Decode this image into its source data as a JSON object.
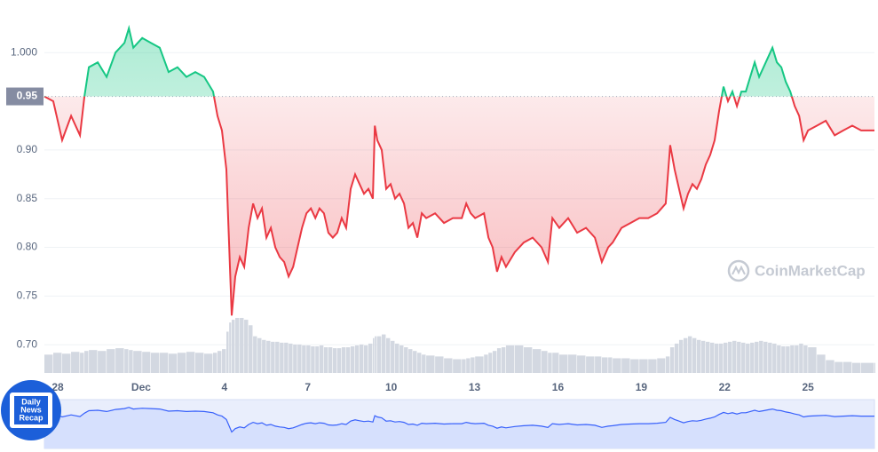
{
  "chart_data": {
    "type": "line",
    "x": [
      -0.48,
      -0.16,
      0.16,
      0.48,
      0.8,
      0.96,
      1.12,
      1.44,
      1.76,
      2.08,
      2.4,
      2.56,
      2.72,
      3.04,
      3.35,
      3.67,
      3.99,
      4.31,
      4.63,
      4.95,
      5.27,
      5.59,
      5.75,
      5.91,
      6.07,
      6.17,
      6.26,
      6.39,
      6.55,
      6.71,
      6.87,
      7.03,
      7.19,
      7.35,
      7.51,
      7.67,
      7.83,
      7.99,
      8.15,
      8.31,
      8.47,
      8.63,
      8.79,
      8.95,
      9.11,
      9.27,
      9.42,
      9.58,
      9.74,
      9.9,
      10.06,
      10.22,
      10.38,
      10.54,
      10.7,
      10.86,
      11.02,
      11.18,
      11.34,
      11.41,
      11.5,
      11.66,
      11.82,
      11.98,
      12.14,
      12.3,
      12.46,
      12.62,
      12.78,
      12.94,
      13.1,
      13.26,
      13.58,
      13.9,
      14.22,
      14.54,
      14.7,
      14.86,
      15.02,
      15.34,
      15.5,
      15.65,
      15.81,
      15.97,
      16.13,
      16.45,
      16.77,
      17.09,
      17.41,
      17.64,
      17.8,
      18.05,
      18.37,
      18.69,
      19.01,
      19.33,
      19.58,
      19.81,
      19.97,
      20.29,
      20.61,
      20.93,
      21.25,
      21.57,
      21.88,
      22.04,
      22.2,
      22.36,
      22.52,
      22.68,
      22.84,
      23.0,
      23.16,
      23.32,
      23.48,
      23.64,
      23.8,
      23.96,
      24.12,
      24.28,
      24.44,
      24.6,
      24.76,
      24.92,
      25.08,
      25.24,
      25.4,
      25.56,
      25.72,
      25.88,
      26.04,
      26.2,
      26.36,
      26.52,
      26.68,
      26.84,
      27.0,
      27.32,
      27.64,
      27.96,
      28.27,
      28.59,
      28.91,
      29.39
    ],
    "values": [
      0.955,
      0.95,
      0.91,
      0.935,
      0.915,
      0.955,
      0.985,
      0.99,
      0.975,
      1.0,
      1.01,
      1.025,
      1.005,
      1.015,
      1.01,
      1.005,
      0.98,
      0.985,
      0.975,
      0.98,
      0.975,
      0.96,
      0.935,
      0.92,
      0.88,
      0.8,
      0.73,
      0.77,
      0.79,
      0.78,
      0.82,
      0.845,
      0.83,
      0.84,
      0.81,
      0.82,
      0.8,
      0.79,
      0.785,
      0.77,
      0.78,
      0.8,
      0.82,
      0.835,
      0.84,
      0.83,
      0.84,
      0.835,
      0.815,
      0.81,
      0.815,
      0.83,
      0.82,
      0.86,
      0.875,
      0.865,
      0.855,
      0.86,
      0.85,
      0.925,
      0.91,
      0.9,
      0.86,
      0.865,
      0.85,
      0.855,
      0.845,
      0.82,
      0.825,
      0.81,
      0.835,
      0.83,
      0.835,
      0.825,
      0.83,
      0.83,
      0.845,
      0.835,
      0.83,
      0.835,
      0.81,
      0.8,
      0.775,
      0.79,
      0.78,
      0.795,
      0.805,
      0.81,
      0.8,
      0.785,
      0.83,
      0.82,
      0.83,
      0.815,
      0.82,
      0.81,
      0.785,
      0.8,
      0.805,
      0.82,
      0.825,
      0.83,
      0.83,
      0.835,
      0.845,
      0.905,
      0.88,
      0.86,
      0.84,
      0.855,
      0.865,
      0.86,
      0.87,
      0.885,
      0.895,
      0.91,
      0.94,
      0.965,
      0.95,
      0.96,
      0.945,
      0.96,
      0.96,
      0.975,
      0.99,
      0.975,
      0.985,
      0.995,
      1.005,
      0.99,
      0.985,
      0.97,
      0.96,
      0.945,
      0.935,
      0.91,
      0.92,
      0.925,
      0.93,
      0.915,
      0.92,
      0.925,
      0.92,
      0.92
    ],
    "volume": [
      20,
      22,
      21,
      23,
      22,
      24,
      25,
      24,
      26,
      27,
      26,
      25,
      24,
      23,
      22,
      22,
      21,
      22,
      23,
      22,
      21,
      22,
      24,
      26,
      45,
      55,
      58,
      60,
      60,
      58,
      52,
      40,
      38,
      36,
      35,
      34,
      34,
      33,
      33,
      32,
      31,
      31,
      30,
      30,
      29,
      29,
      30,
      28,
      28,
      27,
      27,
      28,
      28,
      29,
      30,
      31,
      30,
      32,
      38,
      40,
      40,
      42,
      38,
      35,
      32,
      30,
      28,
      26,
      24,
      22,
      20,
      19,
      18,
      16,
      15,
      15,
      16,
      17,
      18,
      20,
      22,
      24,
      27,
      28,
      30,
      30,
      28,
      26,
      24,
      22,
      22,
      20,
      20,
      19,
      18,
      18,
      17,
      17,
      16,
      16,
      15,
      15,
      15,
      16,
      18,
      28,
      32,
      36,
      38,
      40,
      38,
      36,
      35,
      34,
      33,
      32,
      32,
      33,
      34,
      35,
      34,
      33,
      32,
      33,
      34,
      35,
      34,
      33,
      32,
      30,
      29,
      29,
      30,
      30,
      32,
      30,
      28,
      20,
      14,
      12,
      12,
      11,
      11,
      11
    ],
    "xlim": [
      -0.48,
      29.39
    ],
    "xticks": [
      {
        "value": 0,
        "label": "28"
      },
      {
        "value": 3,
        "label": "Dec"
      },
      {
        "value": 6,
        "label": "4"
      },
      {
        "value": 9,
        "label": "7"
      },
      {
        "value": 12,
        "label": "10"
      },
      {
        "value": 15,
        "label": "13"
      },
      {
        "value": 18,
        "label": "16"
      },
      {
        "value": 21,
        "label": "19"
      },
      {
        "value": 24,
        "label": "22"
      },
      {
        "value": 27,
        "label": "25"
      }
    ],
    "ylim": [
      0.671,
      1.054
    ],
    "yticks": [
      {
        "value": 0.7,
        "label": "0.70"
      },
      0.75,
      {
        "value": 0.8,
        "label": "0.80"
      },
      0.85,
      {
        "value": 0.9,
        "label": "0.90"
      },
      {
        "value": 1,
        "label": "1.000"
      }
    ],
    "baseline": {
      "value": 0.955,
      "label": "0.95"
    },
    "up_color": "#16c784",
    "down_color": "#ea3943",
    "navigator_color": "#3861fb",
    "grid": true,
    "watermark": "CoinMarketCap",
    "badge": [
      "Daily",
      "News",
      "Recap"
    ]
  }
}
